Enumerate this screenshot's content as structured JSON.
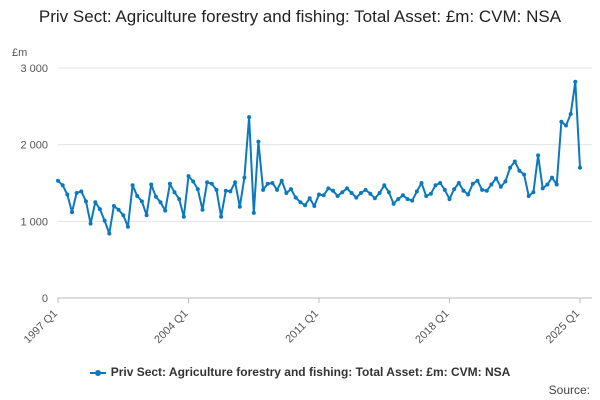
{
  "chart_data": {
    "type": "line",
    "title": "Priv Sect: Agriculture forestry and fishing: Total Asset: £m: CVM: NSA",
    "xlabel": "",
    "ylabel": "£m",
    "ylim": [
      0,
      3000
    ],
    "yticks": [
      0,
      1000,
      2000,
      3000
    ],
    "ytick_labels": [
      "0",
      "1 000",
      "2 000",
      "3 000"
    ],
    "xtick_labels": [
      "1997 Q1",
      "2004 Q1",
      "2011 Q1",
      "2018 Q1",
      "2025 Q1"
    ],
    "x_start": "1997 Q1",
    "grid": "horizontal",
    "legend_position": "bottom",
    "color": "#0c78bd",
    "series": [
      {
        "name": "Priv Sect: Agriculture forestry and fishing: Total Asset: £m: CVM: NSA",
        "values": [
          1530,
          1470,
          1350,
          1120,
          1370,
          1390,
          1260,
          970,
          1250,
          1160,
          1010,
          840,
          1200,
          1150,
          1080,
          930,
          1470,
          1330,
          1260,
          1080,
          1480,
          1320,
          1250,
          1140,
          1490,
          1380,
          1290,
          1060,
          1590,
          1520,
          1420,
          1150,
          1510,
          1490,
          1410,
          1060,
          1400,
          1390,
          1510,
          1190,
          1570,
          2360,
          1110,
          2040,
          1410,
          1490,
          1500,
          1410,
          1530,
          1370,
          1420,
          1310,
          1250,
          1210,
          1300,
          1200,
          1350,
          1340,
          1430,
          1400,
          1330,
          1380,
          1430,
          1370,
          1310,
          1370,
          1410,
          1360,
          1300,
          1370,
          1470,
          1380,
          1230,
          1290,
          1340,
          1290,
          1270,
          1390,
          1500,
          1330,
          1360,
          1470,
          1500,
          1410,
          1290,
          1420,
          1500,
          1400,
          1350,
          1490,
          1530,
          1410,
          1400,
          1480,
          1560,
          1450,
          1520,
          1700,
          1780,
          1660,
          1610,
          1330,
          1380,
          1860,
          1430,
          1480,
          1570,
          1480,
          2300,
          2250,
          2400,
          2820,
          1700
        ]
      }
    ]
  },
  "legend": {
    "label": "Priv Sect: Agriculture forestry and fishing: Total Asset: £m: CVM: NSA"
  },
  "source": {
    "label": "Source:"
  }
}
